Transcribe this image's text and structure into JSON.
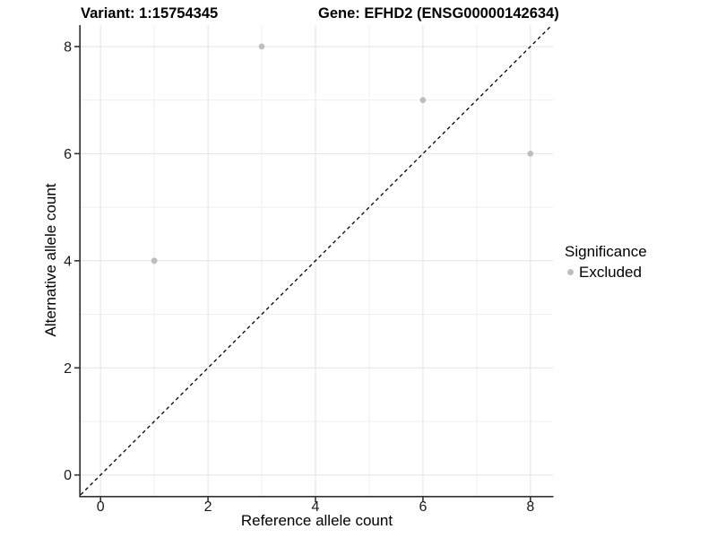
{
  "chart_data": {
    "type": "scatter",
    "titles": {
      "left": "Variant: 1:15754345",
      "right": "Gene: EFHD2 (ENSG00000142634)"
    },
    "xlabel": "Reference allele count",
    "ylabel": "Alternative allele count",
    "xlim": [
      -0.37,
      8.42
    ],
    "ylim": [
      -0.39,
      8.4
    ],
    "xticks": [
      0,
      2,
      4,
      6,
      8
    ],
    "yticks": [
      0,
      2,
      4,
      6,
      8
    ],
    "xticks_minor": [
      1,
      3,
      5,
      7
    ],
    "yticks_minor": [
      1,
      3,
      5,
      7
    ],
    "grid": true,
    "series": [
      {
        "name": "Excluded",
        "color": "#bebebe",
        "points": [
          [
            1,
            4
          ],
          [
            3,
            8
          ],
          [
            6,
            7
          ],
          [
            8,
            6
          ]
        ]
      }
    ],
    "reference_line": {
      "type": "identity",
      "style": "dashed",
      "color": "#000000"
    },
    "legend": {
      "title": "Significance",
      "position": "right",
      "items": [
        {
          "label": "Excluded",
          "color": "#bebebe"
        }
      ]
    },
    "colors": {
      "background": "#ffffff",
      "grid_major": "#e3e3e3",
      "grid_minor": "#efefef",
      "axis_line": "#333333",
      "tick_label": "#1a1a1a"
    }
  }
}
